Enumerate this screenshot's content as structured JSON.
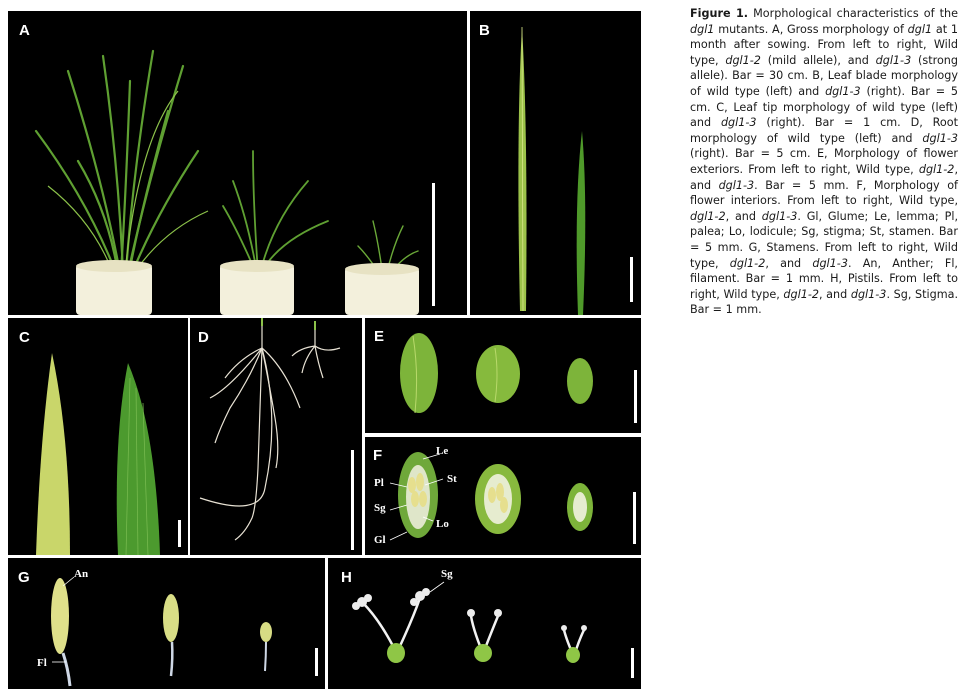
{
  "panels": {
    "A": {
      "label": "A"
    },
    "B": {
      "label": "B"
    },
    "C": {
      "label": "C"
    },
    "D": {
      "label": "D"
    },
    "E": {
      "label": "E"
    },
    "F": {
      "label": "F",
      "annotations": {
        "le": "Le",
        "st": "St",
        "pl": "Pl",
        "sg": "Sg",
        "lo": "Lo",
        "gl": "Gl"
      }
    },
    "G": {
      "label": "G",
      "annotations": {
        "an": "An",
        "fl": "Fl"
      }
    },
    "H": {
      "label": "H",
      "annotations": {
        "sg": "Sg"
      }
    }
  },
  "caption": {
    "figure_label": "Figure 1.",
    "segments": [
      {
        "t": " Morphological characteristics of the ",
        "i": false
      },
      {
        "t": "dgl1",
        "i": true
      },
      {
        "t": " mutants. A, Gross morphology of ",
        "i": false
      },
      {
        "t": "dgl1",
        "i": true
      },
      {
        "t": " at 1 month after sowing. From left to right, Wild type, ",
        "i": false
      },
      {
        "t": "dgl1-2",
        "i": true
      },
      {
        "t": " (mild allele), and ",
        "i": false
      },
      {
        "t": "dgl1-3",
        "i": true
      },
      {
        "t": " (strong allele). Bar = 30 cm. B, Leaf blade morphology of wild type (left) and ",
        "i": false
      },
      {
        "t": "dgl1-3",
        "i": true
      },
      {
        "t": " (right). Bar = 5 cm. C, Leaf tip morphology of wild type (left) and ",
        "i": false
      },
      {
        "t": "dgl1-3",
        "i": true
      },
      {
        "t": " (right). Bar = 1 cm. D, Root morphology of wild type (left) and ",
        "i": false
      },
      {
        "t": "dgl1-3",
        "i": true
      },
      {
        "t": " (right). Bar = 5 cm. E, Morphology of flower exteriors. From left to right, Wild type, ",
        "i": false
      },
      {
        "t": "dgl1-2",
        "i": true
      },
      {
        "t": ", and ",
        "i": false
      },
      {
        "t": "dgl1-3",
        "i": true
      },
      {
        "t": ". Bar = 5 mm. F, Morphology of flower interiors. From left to right, Wild type, ",
        "i": false
      },
      {
        "t": "dgl1-2",
        "i": true
      },
      {
        "t": ", and ",
        "i": false
      },
      {
        "t": "dgl1-3",
        "i": true
      },
      {
        "t": ". Gl, Glume; Le, lemma; Pl, palea; Lo, lodicule; Sg, stigma; St, stamen. Bar = 5 mm. G, Stamens. From left to right, Wild type, ",
        "i": false
      },
      {
        "t": "dgl1-2",
        "i": true
      },
      {
        "t": ", and ",
        "i": false
      },
      {
        "t": "dgl1-3",
        "i": true
      },
      {
        "t": ". An, Anther; Fl, filament. Bar = 1 mm. H, Pistils. From left to right, Wild type, ",
        "i": false
      },
      {
        "t": "dgl1-2",
        "i": true
      },
      {
        "t": ", and ",
        "i": false
      },
      {
        "t": "dgl1-3",
        "i": true
      },
      {
        "t": ". Sg, Stigma. Bar = 1 mm.",
        "i": false
      }
    ]
  },
  "colors": {
    "background": "#000000",
    "label_text": "#ffffff",
    "scale_bar": "#ffffff",
    "leaf_green": "#4f9a2a",
    "pale_leaf": "#c9d66a",
    "pot": "#f3f0dc",
    "root": "#e8e2d4",
    "floret_green": "#7db43a",
    "anther_yellow": "#e6df8e",
    "stigma_white": "#f2f2f2"
  }
}
